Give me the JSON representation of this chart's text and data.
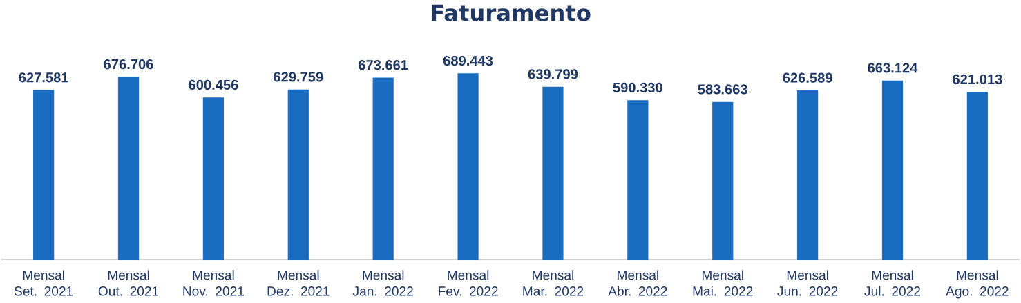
{
  "chart_data": {
    "type": "bar",
    "title": "Faturamento",
    "categories": [
      "Mensal Set. 2021",
      "Mensal Out. 2021",
      "Mensal Nov. 2021",
      "Mensal Dez. 2021",
      "Mensal Jan. 2022",
      "Mensal Fev. 2022",
      "Mensal Mar. 2022",
      "Mensal Abr. 2022",
      "Mensal Mai. 2022",
      "Mensal Jun. 2022",
      "Mensal Jul. 2022",
      "Mensal Ago. 2022"
    ],
    "values": [
      627.581,
      676.706,
      600.456,
      629.759,
      673.661,
      689.443,
      639.799,
      590.33,
      583.663,
      626.589,
      663.124,
      621.013
    ],
    "value_labels": [
      "627.581",
      "676.706",
      "600.456",
      "629.759",
      "673.661",
      "689.443",
      "639.799",
      "590.330",
      "583.663",
      "626.589",
      "663.124",
      "621.013"
    ],
    "color": "#1a6cc0"
  }
}
